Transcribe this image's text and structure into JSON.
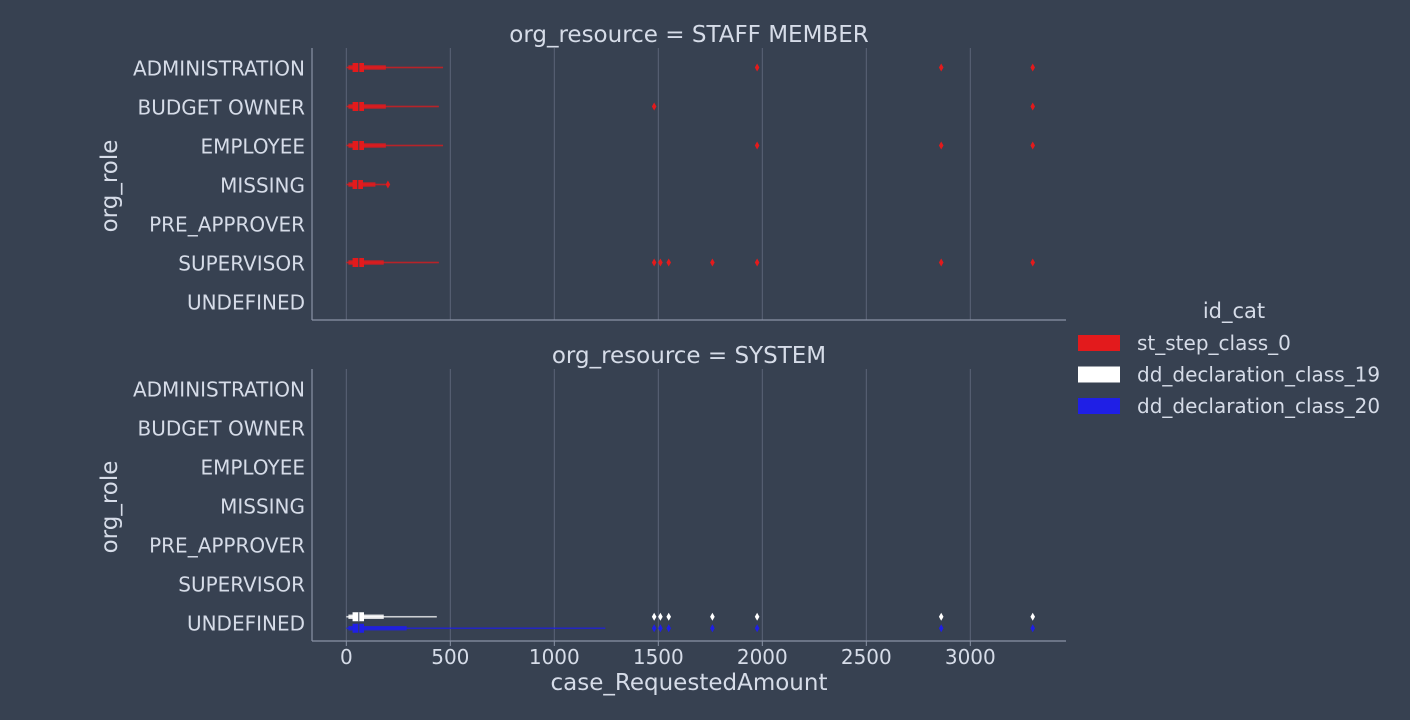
{
  "chart_data": {
    "type": "boxen",
    "xlabel": "case_RequestedAmount",
    "ylabel": "org_role",
    "x_ticks": [
      0,
      500,
      1000,
      1500,
      2000,
      2500,
      3000
    ],
    "xlim": [
      -165,
      3460
    ],
    "grid": "vertical",
    "categories": [
      "ADMINISTRATION",
      "BUDGET OWNER",
      "EMPLOYEE",
      "MISSING",
      "PRE_APPROVER",
      "SUPERVISOR",
      "UNDEFINED"
    ],
    "legend": {
      "title": "id_cat",
      "placement": "right",
      "entries": [
        {
          "label": "st_step_class_0",
          "color": "#e31a1c"
        },
        {
          "label": "dd_declaration_class_19",
          "color": "#ffffff"
        },
        {
          "label": "dd_declaration_class_20",
          "color": "#1f1fe6"
        }
      ]
    },
    "panels": [
      {
        "title": "org_resource = STAFF MEMBER",
        "boxes": [
          {
            "category": "ADMINISTRATION",
            "series": "st_step_class_0",
            "min": 0,
            "max": 465,
            "q1": 30,
            "median": 60,
            "q3": 85,
            "outer_lo": 10,
            "outer_hi": 190,
            "outliers": [
              1975,
              2860,
              3300
            ]
          },
          {
            "category": "BUDGET OWNER",
            "series": "st_step_class_0",
            "min": 0,
            "max": 445,
            "q1": 30,
            "median": 60,
            "q3": 85,
            "outer_lo": 10,
            "outer_hi": 190,
            "outliers": [
              1480,
              3300
            ]
          },
          {
            "category": "EMPLOYEE",
            "series": "st_step_class_0",
            "min": 0,
            "max": 465,
            "q1": 30,
            "median": 60,
            "q3": 85,
            "outer_lo": 10,
            "outer_hi": 190,
            "outliers": [
              1975,
              2860,
              3300
            ]
          },
          {
            "category": "MISSING",
            "series": "st_step_class_0",
            "min": 0,
            "max": 190,
            "q1": 30,
            "median": 55,
            "q3": 80,
            "outer_lo": 10,
            "outer_hi": 140,
            "outliers": [
              200
            ]
          },
          {
            "category": "SUPERVISOR",
            "series": "st_step_class_0",
            "min": 0,
            "max": 445,
            "q1": 30,
            "median": 60,
            "q3": 85,
            "outer_lo": 10,
            "outer_hi": 180,
            "outliers": [
              1480,
              1510,
              1550,
              1760,
              1975,
              2860,
              3300
            ]
          }
        ]
      },
      {
        "title": "org_resource = SYSTEM",
        "boxes": [
          {
            "category": "UNDEFINED",
            "series": "dd_declaration_class_19",
            "min": 0,
            "max": 435,
            "q1": 30,
            "median": 60,
            "q3": 85,
            "outer_lo": 10,
            "outer_hi": 180,
            "outliers": [
              1480,
              1510,
              1550,
              1760,
              1975,
              2860,
              3300
            ]
          },
          {
            "category": "UNDEFINED",
            "series": "dd_declaration_class_20",
            "min": 0,
            "max": 1245,
            "q1": 30,
            "median": 60,
            "q3": 85,
            "outer_lo": 10,
            "outer_hi": 290,
            "outliers": [
              1480,
              1510,
              1550,
              1760,
              1975,
              2860,
              3300
            ]
          }
        ]
      }
    ]
  }
}
